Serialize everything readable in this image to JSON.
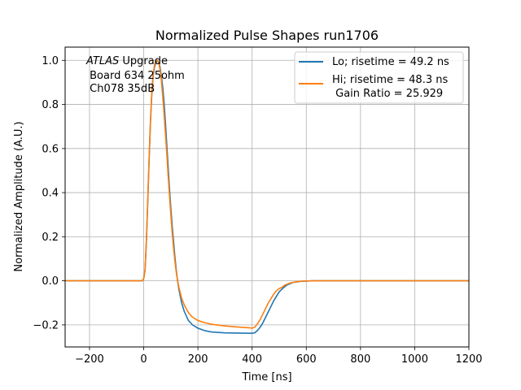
{
  "chart_data": {
    "type": "line",
    "title": "Normalized Pulse Shapes run1706",
    "xlabel": "Time [ns]",
    "ylabel": "Normalized Amplitude (A.U.)",
    "xlim": [
      -290,
      1200
    ],
    "ylim": [
      -0.3,
      1.06
    ],
    "xticks": [
      -200,
      0,
      200,
      400,
      600,
      800,
      1000,
      1200
    ],
    "xtick_labels": [
      "−200",
      "0",
      "200",
      "400",
      "600",
      "800",
      "1000",
      "1200"
    ],
    "yticks": [
      -0.2,
      0.0,
      0.2,
      0.4,
      0.6,
      0.8,
      1.0
    ],
    "ytick_labels": [
      "−0.2",
      "0.0",
      "0.2",
      "0.4",
      "0.6",
      "0.8",
      "1.0"
    ],
    "grid": true,
    "legend_position": "top-right",
    "annotation": {
      "line1_italic": "ATLAS",
      "line1_rest": " Upgrade",
      "line2": " Board 634 25ohm",
      "line3": " Ch078 35dB"
    },
    "series": [
      {
        "name": "Lo; risetime = 49.2 ns",
        "color": "#1f77b4",
        "points": [
          [
            -290,
            0
          ],
          [
            -100,
            0
          ],
          [
            -5,
            0
          ],
          [
            0,
            0.01
          ],
          [
            5,
            0.05
          ],
          [
            10,
            0.18
          ],
          [
            15,
            0.36
          ],
          [
            20,
            0.55
          ],
          [
            25,
            0.72
          ],
          [
            30,
            0.85
          ],
          [
            35,
            0.93
          ],
          [
            40,
            0.97
          ],
          [
            45,
            0.99
          ],
          [
            50,
            1.0
          ],
          [
            55,
            0.99
          ],
          [
            60,
            0.97
          ],
          [
            65,
            0.93
          ],
          [
            70,
            0.88
          ],
          [
            75,
            0.81
          ],
          [
            80,
            0.72
          ],
          [
            85,
            0.62
          ],
          [
            90,
            0.52
          ],
          [
            95,
            0.42
          ],
          [
            100,
            0.33
          ],
          [
            105,
            0.25
          ],
          [
            110,
            0.18
          ],
          [
            115,
            0.11
          ],
          [
            120,
            0.05
          ],
          [
            125,
            0.0
          ],
          [
            130,
            -0.04
          ],
          [
            140,
            -0.1
          ],
          [
            150,
            -0.14
          ],
          [
            165,
            -0.18
          ],
          [
            180,
            -0.2
          ],
          [
            200,
            -0.215
          ],
          [
            225,
            -0.226
          ],
          [
            250,
            -0.232
          ],
          [
            300,
            -0.236
          ],
          [
            350,
            -0.237
          ],
          [
            400,
            -0.238
          ],
          [
            410,
            -0.236
          ],
          [
            420,
            -0.225
          ],
          [
            430,
            -0.21
          ],
          [
            440,
            -0.19
          ],
          [
            450,
            -0.165
          ],
          [
            460,
            -0.14
          ],
          [
            470,
            -0.115
          ],
          [
            480,
            -0.09
          ],
          [
            490,
            -0.07
          ],
          [
            500,
            -0.05
          ],
          [
            515,
            -0.032
          ],
          [
            530,
            -0.018
          ],
          [
            550,
            -0.008
          ],
          [
            580,
            -0.002
          ],
          [
            620,
            0.0
          ],
          [
            1200,
            0
          ]
        ]
      },
      {
        "name": "Hi; risetime = 48.3 ns",
        "subtext": " Gain Ratio = 25.929",
        "color": "#ff7f0e",
        "points": [
          [
            -290,
            0
          ],
          [
            -100,
            0
          ],
          [
            -5,
            0
          ],
          [
            0,
            0.01
          ],
          [
            5,
            0.05
          ],
          [
            10,
            0.19
          ],
          [
            15,
            0.37
          ],
          [
            20,
            0.56
          ],
          [
            25,
            0.73
          ],
          [
            30,
            0.86
          ],
          [
            35,
            0.94
          ],
          [
            40,
            0.98
          ],
          [
            45,
            1.0
          ],
          [
            50,
            1.0
          ],
          [
            55,
            0.99
          ],
          [
            60,
            0.96
          ],
          [
            65,
            0.91
          ],
          [
            70,
            0.84
          ],
          [
            75,
            0.76
          ],
          [
            80,
            0.67
          ],
          [
            85,
            0.58
          ],
          [
            90,
            0.48
          ],
          [
            95,
            0.39
          ],
          [
            100,
            0.3
          ],
          [
            105,
            0.22
          ],
          [
            110,
            0.15
          ],
          [
            115,
            0.09
          ],
          [
            120,
            0.04
          ],
          [
            125,
            0.0
          ],
          [
            130,
            -0.03
          ],
          [
            140,
            -0.08
          ],
          [
            150,
            -0.11
          ],
          [
            165,
            -0.145
          ],
          [
            180,
            -0.165
          ],
          [
            200,
            -0.18
          ],
          [
            225,
            -0.19
          ],
          [
            250,
            -0.197
          ],
          [
            300,
            -0.205
          ],
          [
            350,
            -0.21
          ],
          [
            390,
            -0.213
          ],
          [
            400,
            -0.215
          ],
          [
            410,
            -0.21
          ],
          [
            420,
            -0.195
          ],
          [
            430,
            -0.175
          ],
          [
            440,
            -0.15
          ],
          [
            450,
            -0.125
          ],
          [
            460,
            -0.1
          ],
          [
            470,
            -0.08
          ],
          [
            480,
            -0.06
          ],
          [
            490,
            -0.045
          ],
          [
            500,
            -0.035
          ],
          [
            510,
            -0.03
          ],
          [
            520,
            -0.02
          ],
          [
            540,
            -0.01
          ],
          [
            570,
            -0.003
          ],
          [
            620,
            0.0
          ],
          [
            1200,
            0
          ]
        ]
      }
    ]
  }
}
